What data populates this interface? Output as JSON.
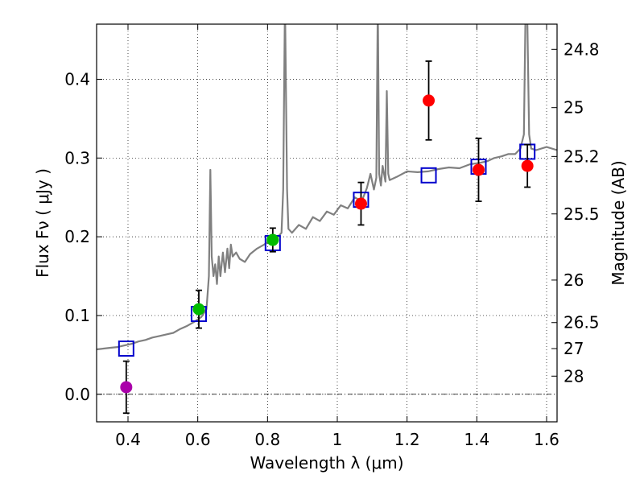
{
  "chart_data": {
    "type": "scatter",
    "xlabel": "Wavelength  λ (μm)",
    "ylabel": "Flux  Fν  ( μJy )",
    "ylabel_right": "Magnitude (AB)",
    "xlim": [
      0.31,
      1.63
    ],
    "ylim": [
      -0.035,
      0.47
    ],
    "grid": true,
    "x_ticks": [
      {
        "value": 0.4,
        "label": "0.4"
      },
      {
        "value": 0.6,
        "label": "0.6"
      },
      {
        "value": 0.8,
        "label": "0.8"
      },
      {
        "value": 1.0,
        "label": "1"
      },
      {
        "value": 1.2,
        "label": "1.2"
      },
      {
        "value": 1.4,
        "label": "1.4"
      },
      {
        "value": 1.6,
        "label": "1.6"
      }
    ],
    "y_ticks": [
      {
        "value": 0.0,
        "label": "0.0"
      },
      {
        "value": 0.1,
        "label": "0.1"
      },
      {
        "value": 0.2,
        "label": "0.2"
      },
      {
        "value": 0.3,
        "label": "0.3"
      },
      {
        "value": 0.4,
        "label": "0.4"
      }
    ],
    "mag_ticks": [
      {
        "label": "24.8",
        "flux": 0.438
      },
      {
        "label": "25",
        "flux": 0.364
      },
      {
        "label": "25.2",
        "flux": 0.302
      },
      {
        "label": "25.5",
        "flux": 0.229
      },
      {
        "label": "26",
        "flux": 0.145
      },
      {
        "label": "26.5",
        "flux": 0.091
      },
      {
        "label": "27",
        "flux": 0.058
      },
      {
        "label": "28",
        "flux": 0.023
      }
    ],
    "model_spectrum": {
      "color": "#808080",
      "x": [
        0.31,
        0.33,
        0.35,
        0.37,
        0.39,
        0.41,
        0.43,
        0.45,
        0.47,
        0.49,
        0.51,
        0.53,
        0.55,
        0.57,
        0.59,
        0.6,
        0.61,
        0.625,
        0.632,
        0.636,
        0.64,
        0.645,
        0.65,
        0.655,
        0.66,
        0.665,
        0.672,
        0.678,
        0.685,
        0.69,
        0.695,
        0.7,
        0.71,
        0.72,
        0.735,
        0.75,
        0.77,
        0.79,
        0.81,
        0.83,
        0.84,
        0.845,
        0.85,
        0.856,
        0.86,
        0.87,
        0.89,
        0.91,
        0.93,
        0.95,
        0.97,
        0.99,
        1.01,
        1.03,
        1.05,
        1.07,
        1.085,
        1.095,
        1.105,
        1.112,
        1.116,
        1.12,
        1.125,
        1.13,
        1.138,
        1.142,
        1.146,
        1.15,
        1.17,
        1.2,
        1.23,
        1.26,
        1.29,
        1.32,
        1.35,
        1.38,
        1.41,
        1.43,
        1.45,
        1.47,
        1.49,
        1.51,
        1.525,
        1.535,
        1.54,
        1.544,
        1.55,
        1.556,
        1.57,
        1.6,
        1.63
      ],
      "y": [
        0.057,
        0.058,
        0.059,
        0.06,
        0.062,
        0.064,
        0.067,
        0.069,
        0.072,
        0.074,
        0.076,
        0.078,
        0.083,
        0.087,
        0.092,
        0.095,
        0.098,
        0.108,
        0.15,
        0.285,
        0.175,
        0.15,
        0.165,
        0.14,
        0.175,
        0.15,
        0.18,
        0.155,
        0.185,
        0.16,
        0.19,
        0.175,
        0.18,
        0.172,
        0.168,
        0.178,
        0.185,
        0.19,
        0.196,
        0.2,
        0.205,
        0.26,
        0.5,
        0.26,
        0.21,
        0.205,
        0.215,
        0.21,
        0.225,
        0.22,
        0.232,
        0.228,
        0.24,
        0.236,
        0.25,
        0.245,
        0.262,
        0.28,
        0.26,
        0.275,
        0.5,
        0.28,
        0.265,
        0.29,
        0.27,
        0.385,
        0.28,
        0.272,
        0.276,
        0.283,
        0.282,
        0.283,
        0.286,
        0.288,
        0.287,
        0.292,
        0.294,
        0.296,
        0.3,
        0.302,
        0.305,
        0.305,
        0.312,
        0.33,
        0.5,
        0.5,
        0.33,
        0.312,
        0.31,
        0.314,
        0.31
      ]
    },
    "model_band_squares": {
      "color": "#0000cc",
      "x": [
        0.395,
        0.603,
        0.815,
        1.068,
        1.262,
        1.405,
        1.545
      ],
      "y": [
        0.058,
        0.102,
        0.192,
        0.247,
        0.278,
        0.289,
        0.308
      ]
    },
    "observed_points": [
      {
        "x": 0.395,
        "y": 0.009,
        "err": 0.033,
        "color": "#aa00aa"
      },
      {
        "x": 0.603,
        "y": 0.108,
        "err": 0.024,
        "color": "#00bb00"
      },
      {
        "x": 0.815,
        "y": 0.196,
        "err": 0.015,
        "color": "#00bb00"
      },
      {
        "x": 1.068,
        "y": 0.242,
        "err": 0.027,
        "color": "#ff0000"
      },
      {
        "x": 1.262,
        "y": 0.373,
        "err": 0.05,
        "color": "#ff0000"
      },
      {
        "x": 1.405,
        "y": 0.285,
        "err": 0.04,
        "color": "#ff0000"
      },
      {
        "x": 1.545,
        "y": 0.29,
        "err": 0.027,
        "color": "#ff0000"
      }
    ]
  }
}
